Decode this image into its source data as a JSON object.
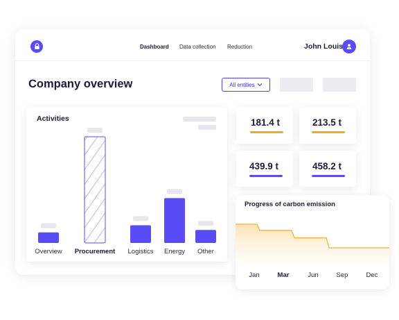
{
  "nav": {
    "links": [
      {
        "label": "Dashboard",
        "active": true
      },
      {
        "label": "Data collection",
        "active": false
      },
      {
        "label": "Reduction",
        "active": false
      }
    ],
    "user_name": "John Louis",
    "icons": {
      "brand": "lock-icon",
      "avatar": "user-icon"
    }
  },
  "page": {
    "title": "Company overview",
    "filter_label": "All entities"
  },
  "activities": {
    "title": "Activities",
    "selected": "Procurement",
    "accent_color": "#5a4cf5"
  },
  "chart_data": [
    {
      "type": "bar",
      "title": "Activities",
      "categories": [
        "Overview",
        "Procurement",
        "Logistics",
        "Energy",
        "Other"
      ],
      "values": [
        9,
        90,
        15,
        38,
        11
      ],
      "ylim": [
        0,
        100
      ],
      "grid": false,
      "tick_labels": false
    },
    {
      "type": "area",
      "title": "Progress of carbon emission",
      "x": [
        "Jan",
        "Mar",
        "Jun",
        "Sep",
        "Dec"
      ],
      "x_selected": "Mar",
      "values": [
        100,
        90,
        78,
        62,
        62
      ],
      "grid": false
    }
  ],
  "stats": [
    {
      "value": "181.4 t",
      "color": "#f2a918"
    },
    {
      "value": "213.5 t",
      "color": "#f2a918"
    },
    {
      "value": "439.9 t",
      "color": "#5a4cf5"
    },
    {
      "value": "458.2 t",
      "color": "#5a4cf5"
    }
  ],
  "emission": {
    "title": "Progress of carbon emission",
    "line_color": "#f0b240",
    "fill_color": "#fde5c0"
  }
}
